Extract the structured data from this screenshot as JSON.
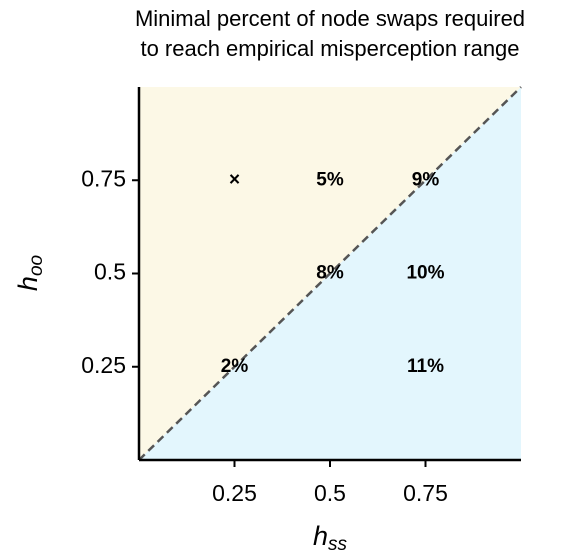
{
  "chart_data": {
    "type": "scatter",
    "title": [
      "Minimal percent of node swaps required",
      "to reach empirical misperception range"
    ],
    "xlabel": {
      "text": "h",
      "subscript": "ss"
    },
    "ylabel": {
      "text": "h",
      "subscript": "oo"
    },
    "x": [
      0.25,
      0.5,
      0.75,
      0.5,
      0.75,
      0.25,
      0.75
    ],
    "y": [
      0.75,
      0.75,
      0.75,
      0.5,
      0.5,
      0.25,
      0.25
    ],
    "values": [
      null,
      5,
      9,
      8,
      10,
      2,
      11
    ],
    "value_labels": [
      "×",
      "5%",
      "9%",
      "8%",
      "10%",
      "2%",
      "11%"
    ],
    "label_color": "#2b2b2b",
    "xlim": [
      0,
      1
    ],
    "ylim": [
      0,
      1
    ],
    "xticks": [
      0.25,
      0.5,
      0.75
    ],
    "yticks": [
      0.25,
      0.5,
      0.75
    ],
    "fill_above_diagonal": "#fcf8e6",
    "fill_below_diagonal": "#e3f6fd",
    "diagonal": true,
    "diagonal_color": "#555555"
  }
}
